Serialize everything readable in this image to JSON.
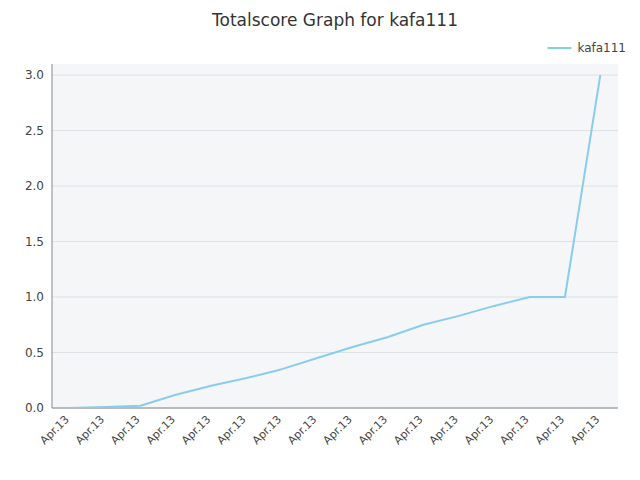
{
  "chart_data": {
    "type": "line",
    "title": "Totalscore Graph for kafa111",
    "categories": [
      "Apr.13",
      "Apr.13",
      "Apr.13",
      "Apr.13",
      "Apr.13",
      "Apr.13",
      "Apr.13",
      "Apr.13",
      "Apr.13",
      "Apr.13",
      "Apr.13",
      "Apr.13",
      "Apr.13",
      "Apr.13",
      "Apr.13",
      "Apr.13"
    ],
    "series": [
      {
        "name": "kafa111",
        "color": "#88ccee",
        "values": [
          0.0,
          0.01,
          0.02,
          0.12,
          0.2,
          0.27,
          0.35,
          0.45,
          0.55,
          0.64,
          0.75,
          0.83,
          0.92,
          1.0,
          1.0,
          3.0
        ]
      }
    ],
    "ylim": [
      0.0,
      3.1
    ],
    "yticks": [
      {
        "value": 0.0,
        "label": "0.0"
      },
      0.5,
      {
        "value": 1.0,
        "label": "1.0"
      },
      1.5,
      {
        "value": 2.0,
        "label": "2.0"
      },
      2.5,
      {
        "value": 3.0,
        "label": "3.0"
      }
    ],
    "grid": true,
    "legend": "upper-right"
  }
}
